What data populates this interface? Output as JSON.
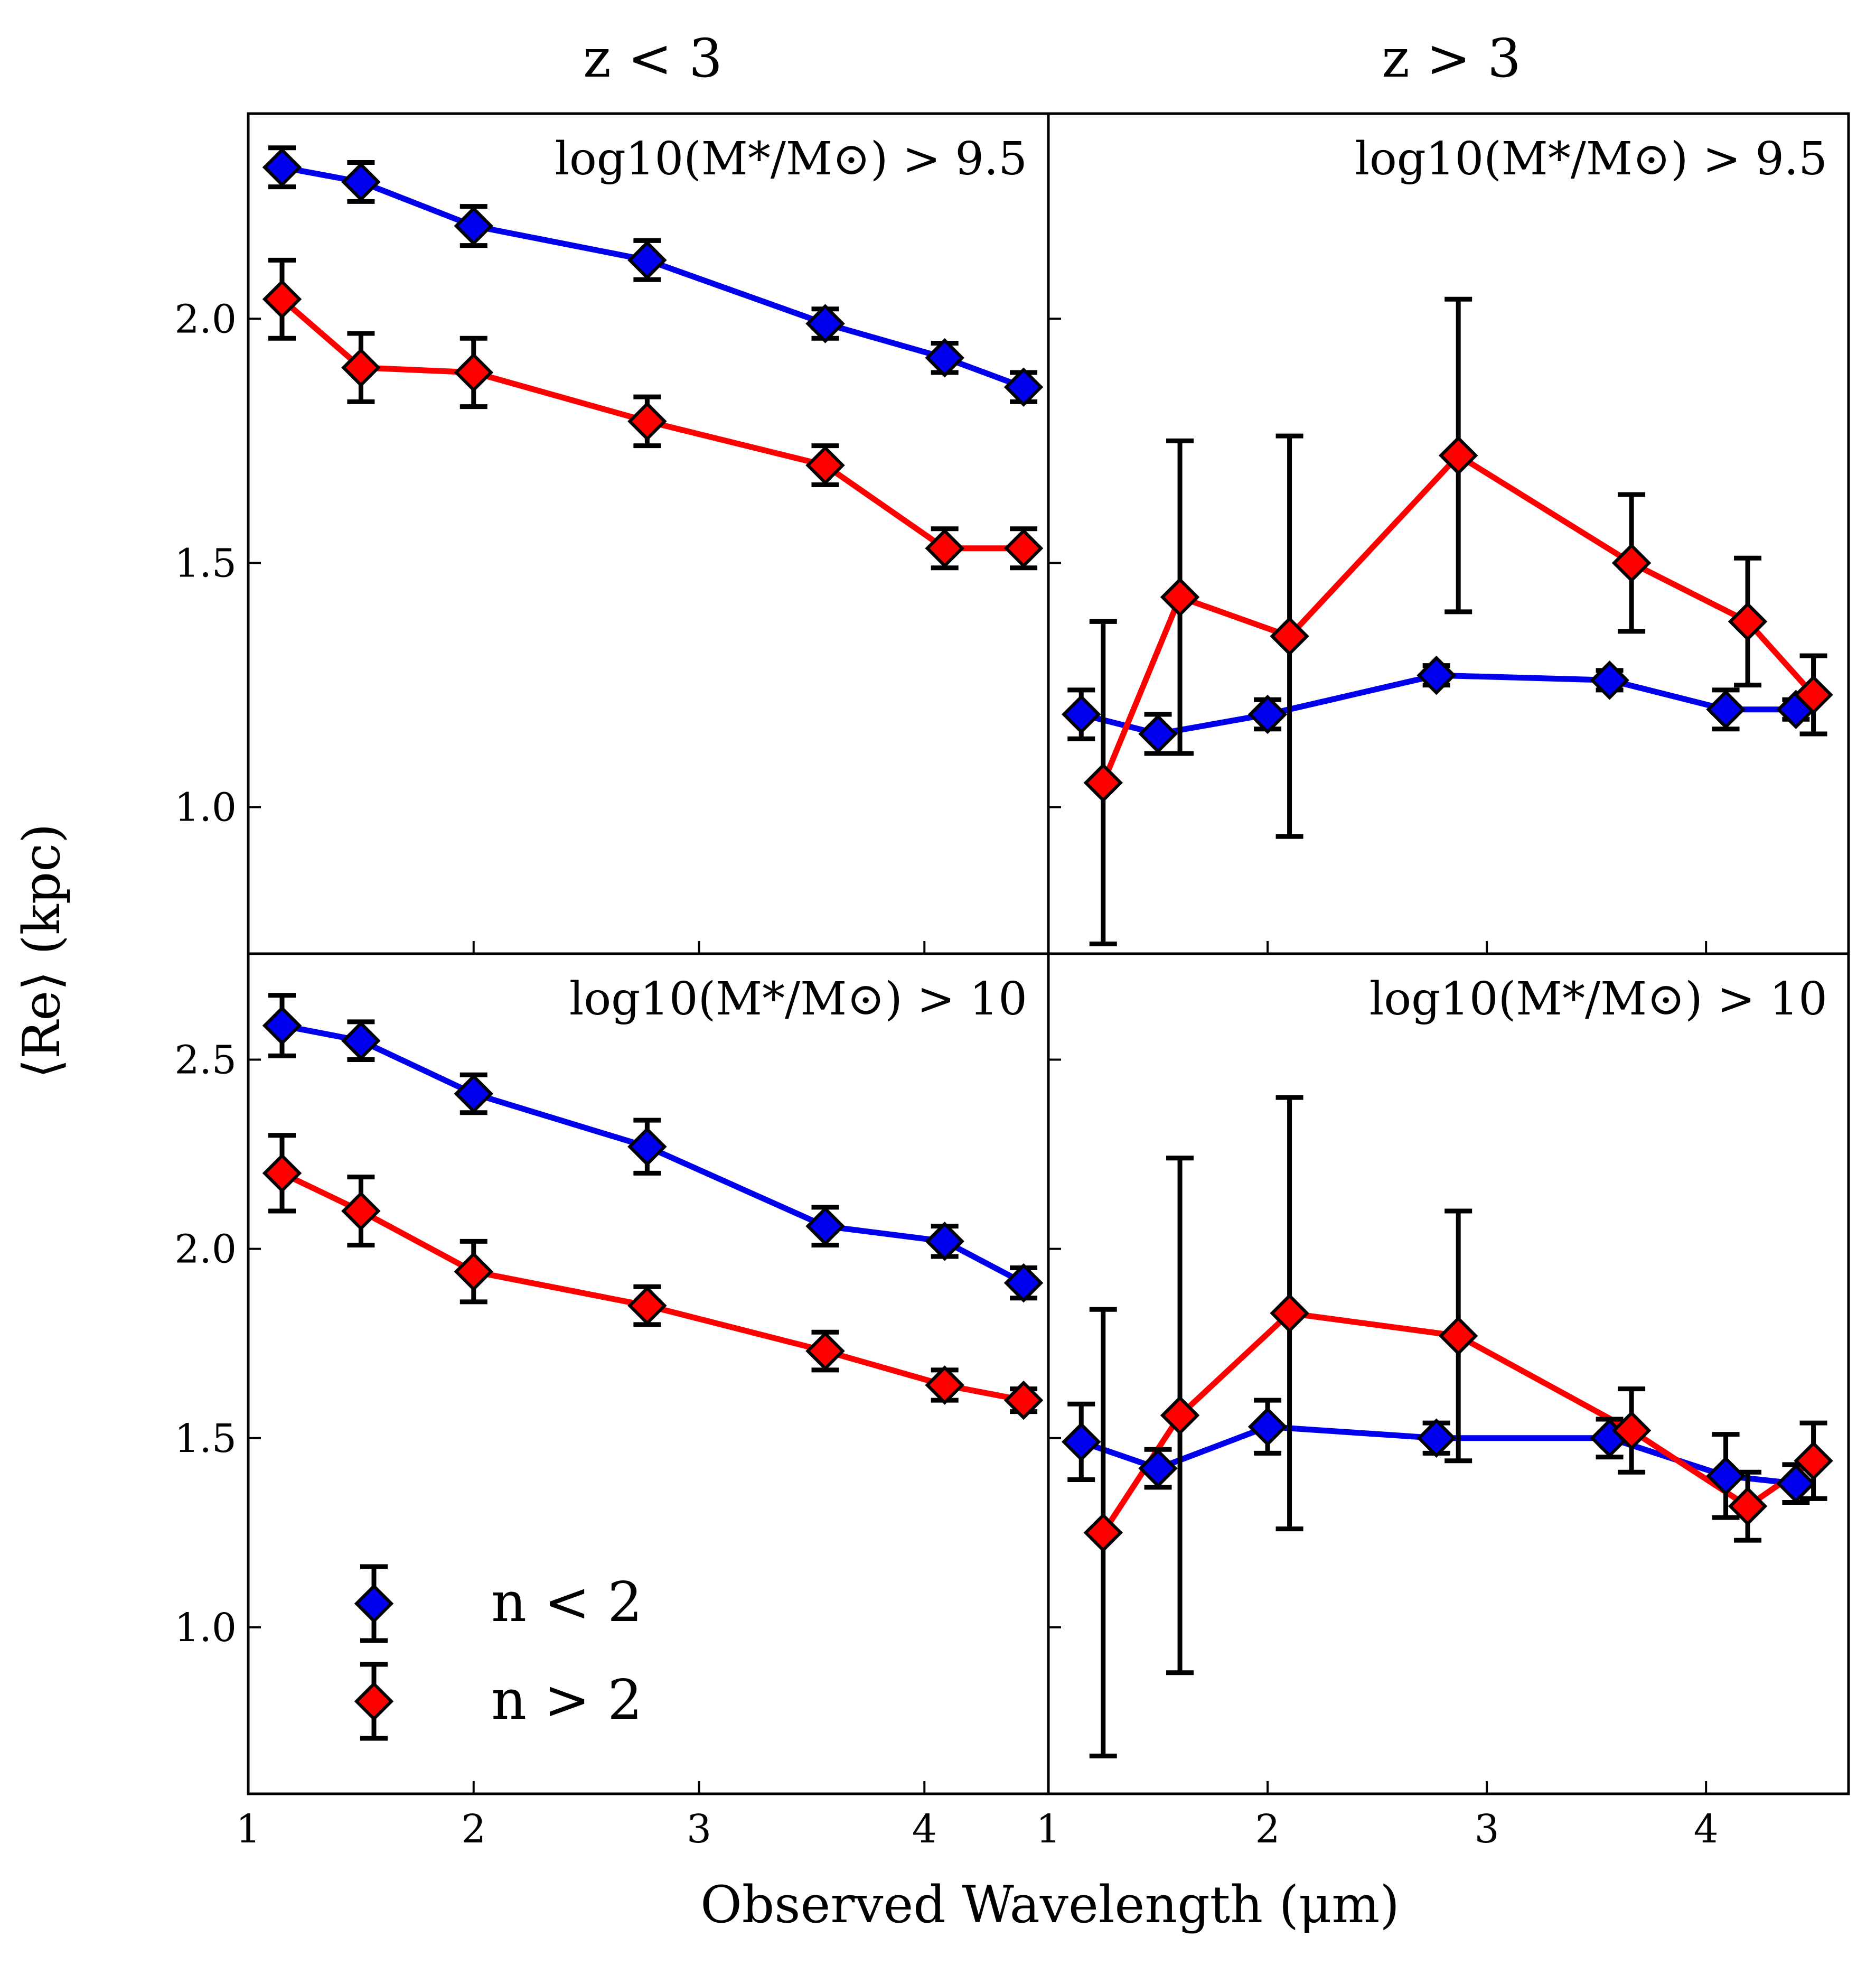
{
  "figure": {
    "xlabel": "Observed Wavelength (μm)",
    "ylabel": "⟨Re⟩ (kpc)",
    "column_titles": [
      "z < 3",
      "z > 3"
    ],
    "legend": [
      {
        "label": "n < 2",
        "color": "#0000ee"
      },
      {
        "label": "n > 2",
        "color": "#ff0000"
      }
    ]
  },
  "chart_data": [
    {
      "type": "line",
      "panel": "top-left",
      "title": "z < 3",
      "annotation": "log10(M*/M⊙) > 9.5",
      "xlabel": "",
      "ylabel": "⟨Re⟩ (kpc)",
      "xlim": [
        1.0,
        4.55
      ],
      "ylim": [
        0.7,
        2.42
      ],
      "xticks": [
        1,
        2,
        3,
        4
      ],
      "yticks": [
        1.0,
        1.5,
        2.0
      ],
      "series": [
        {
          "name": "n < 2",
          "color": "#0000ee",
          "x": [
            1.15,
            1.5,
            2.0,
            2.77,
            3.56,
            4.09,
            4.44
          ],
          "y": [
            2.31,
            2.28,
            2.19,
            2.12,
            1.99,
            1.92,
            1.86
          ],
          "err": [
            0.04,
            0.04,
            0.04,
            0.04,
            0.03,
            0.03,
            0.03
          ]
        },
        {
          "name": "n > 2",
          "color": "#ff0000",
          "x": [
            1.15,
            1.5,
            2.0,
            2.77,
            3.56,
            4.09,
            4.44
          ],
          "y": [
            2.04,
            1.9,
            1.89,
            1.79,
            1.7,
            1.53,
            1.53
          ],
          "err": [
            0.08,
            0.07,
            0.07,
            0.05,
            0.04,
            0.04,
            0.04
          ]
        }
      ]
    },
    {
      "type": "line",
      "panel": "top-right",
      "title": "z > 3",
      "annotation": "log10(M*/M⊙) > 9.5",
      "xlabel": "",
      "ylabel": "",
      "xlim": [
        1.0,
        4.65
      ],
      "ylim": [
        0.7,
        2.42
      ],
      "xticks": [
        1,
        2,
        3,
        4
      ],
      "yticks": [
        1.0,
        1.5,
        2.0
      ],
      "series": [
        {
          "name": "n < 2",
          "color": "#0000ee",
          "x": [
            1.15,
            1.5,
            2.0,
            2.77,
            3.56,
            4.09,
            4.41
          ],
          "y": [
            1.19,
            1.15,
            1.19,
            1.27,
            1.26,
            1.2,
            1.2
          ],
          "err": [
            0.05,
            0.04,
            0.03,
            0.02,
            0.02,
            0.04,
            0.02
          ]
        },
        {
          "name": "n > 2",
          "color": "#ff0000",
          "x": [
            1.25,
            1.6,
            2.1,
            2.87,
            3.66,
            4.19,
            4.49
          ],
          "y": [
            1.05,
            1.43,
            1.35,
            1.72,
            1.5,
            1.38,
            1.23
          ],
          "err": [
            0.33,
            0.32,
            0.41,
            0.32,
            0.14,
            0.13,
            0.08
          ]
        }
      ]
    },
    {
      "type": "line",
      "panel": "bottom-left",
      "title": "",
      "annotation": "log10(M*/M⊙) > 10",
      "xlabel": "Observed Wavelength (μm)",
      "ylabel": "⟨Re⟩ (kpc)",
      "xlim": [
        1.0,
        4.55
      ],
      "ylim": [
        0.56,
        2.78
      ],
      "xticks": [
        1,
        2,
        3,
        4
      ],
      "yticks": [
        1.0,
        1.5,
        2.0,
        2.5
      ],
      "series": [
        {
          "name": "n < 2",
          "color": "#0000ee",
          "x": [
            1.15,
            1.5,
            2.0,
            2.77,
            3.56,
            4.09,
            4.44
          ],
          "y": [
            2.59,
            2.55,
            2.41,
            2.27,
            2.06,
            2.02,
            1.91
          ],
          "err": [
            0.08,
            0.05,
            0.05,
            0.07,
            0.05,
            0.04,
            0.04
          ]
        },
        {
          "name": "n > 2",
          "color": "#ff0000",
          "x": [
            1.15,
            1.5,
            2.0,
            2.77,
            3.56,
            4.09,
            4.44
          ],
          "y": [
            2.2,
            2.1,
            1.94,
            1.85,
            1.73,
            1.64,
            1.6
          ],
          "err": [
            0.1,
            0.09,
            0.08,
            0.05,
            0.05,
            0.04,
            0.03
          ]
        }
      ]
    },
    {
      "type": "line",
      "panel": "bottom-right",
      "title": "",
      "annotation": "log10(M*/M⊙) > 10",
      "xlabel": "Observed Wavelength (μm)",
      "ylabel": "",
      "xlim": [
        1.0,
        4.65
      ],
      "ylim": [
        0.56,
        2.78
      ],
      "xticks": [
        1,
        2,
        3,
        4
      ],
      "yticks": [
        1.0,
        1.5,
        2.0,
        2.5
      ],
      "series": [
        {
          "name": "n < 2",
          "color": "#0000ee",
          "x": [
            1.15,
            1.5,
            2.0,
            2.77,
            3.56,
            4.09,
            4.41
          ],
          "y": [
            1.49,
            1.42,
            1.53,
            1.5,
            1.5,
            1.4,
            1.38
          ],
          "err": [
            0.1,
            0.05,
            0.07,
            0.04,
            0.05,
            0.11,
            0.05
          ]
        },
        {
          "name": "n > 2",
          "color": "#ff0000",
          "x": [
            1.25,
            1.6,
            2.1,
            2.87,
            3.66,
            4.19,
            4.49
          ],
          "y": [
            1.25,
            1.56,
            1.83,
            1.77,
            1.52,
            1.32,
            1.44
          ],
          "err": [
            0.59,
            0.68,
            0.57,
            0.33,
            0.11,
            0.09,
            0.1
          ]
        }
      ]
    }
  ]
}
